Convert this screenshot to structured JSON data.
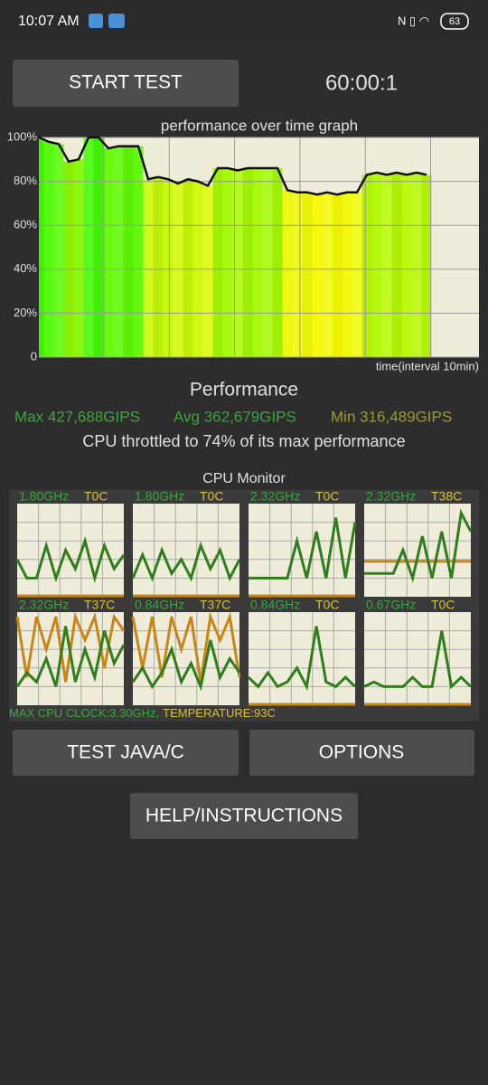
{
  "status_bar": {
    "time": "10:07 AM",
    "battery": "63"
  },
  "header": {
    "start_button": "START TEST",
    "timer": "60:00:1"
  },
  "performance_graph": {
    "title": "performance over time graph",
    "x_label": "time(interval 10min)",
    "ylim": [
      0,
      100
    ],
    "yticks": [
      {
        "value": 0,
        "label": "0"
      },
      {
        "value": 20,
        "label": "20%"
      },
      {
        "value": 40,
        "label": "40%"
      },
      {
        "value": 60,
        "label": "60%"
      },
      {
        "value": 80,
        "label": "80%"
      },
      {
        "value": 100,
        "label": "100%"
      }
    ],
    "values": [
      100,
      98,
      97,
      89,
      90,
      100,
      100,
      95,
      96,
      96,
      96,
      81,
      82,
      81,
      79,
      81,
      80,
      78,
      86,
      86,
      85,
      86,
      86,
      86,
      86,
      76,
      75,
      75,
      74,
      75,
      74,
      75,
      75,
      83,
      84,
      83,
      84,
      83,
      84,
      83
    ]
  },
  "performance": {
    "heading": "Performance",
    "max": "Max 427,688GIPS",
    "avg": "Avg 362,679GIPS",
    "min": "Min 316,489GIPS",
    "throttle": "CPU throttled to 74% of its max performance"
  },
  "cpu_monitor": {
    "title": "CPU Monitor",
    "cores": [
      {
        "freq": "1.80GHz",
        "temp": "T0C",
        "freq_line": [
          40,
          20,
          20,
          55,
          20,
          50,
          30,
          60,
          20,
          55,
          30,
          45
        ],
        "temp_line": [
          1,
          1,
          1,
          1,
          1,
          1,
          1,
          1,
          1,
          1,
          1,
          1
        ]
      },
      {
        "freq": "1.80GHz",
        "temp": "T0C",
        "freq_line": [
          20,
          45,
          20,
          50,
          25,
          40,
          20,
          55,
          30,
          50,
          20,
          40
        ],
        "temp_line": [
          1,
          1,
          1,
          1,
          1,
          1,
          1,
          1,
          1,
          1,
          1,
          1
        ]
      },
      {
        "freq": "2.32GHz",
        "temp": "T0C",
        "freq_line": [
          20,
          20,
          20,
          20,
          20,
          60,
          20,
          70,
          20,
          85,
          20,
          80
        ],
        "temp_line": [
          1,
          1,
          1,
          1,
          1,
          1,
          1,
          1,
          1,
          1,
          1,
          1
        ]
      },
      {
        "freq": "2.32GHz",
        "temp": "T38C",
        "freq_line": [
          25,
          25,
          25,
          25,
          50,
          20,
          65,
          20,
          70,
          20,
          90,
          70
        ],
        "temp_line": [
          38,
          38,
          38,
          38,
          38,
          38,
          38,
          38,
          38,
          38,
          38,
          38
        ]
      },
      {
        "freq": "2.32GHz",
        "temp": "T37C",
        "freq_line": [
          20,
          35,
          25,
          50,
          20,
          85,
          25,
          60,
          30,
          80,
          45,
          65
        ],
        "temp_line": [
          95,
          30,
          95,
          60,
          95,
          25,
          95,
          70,
          95,
          40,
          95,
          80
        ]
      },
      {
        "freq": "0.84GHz",
        "temp": "T37C",
        "freq_line": [
          25,
          40,
          20,
          35,
          60,
          25,
          45,
          20,
          70,
          30,
          50,
          35
        ],
        "temp_line": [
          95,
          40,
          95,
          30,
          95,
          60,
          95,
          25,
          95,
          70,
          95,
          30
        ]
      },
      {
        "freq": "0.84GHz",
        "temp": "T0C",
        "freq_line": [
          30,
          20,
          35,
          20,
          25,
          40,
          20,
          85,
          25,
          20,
          30,
          20
        ],
        "temp_line": [
          1,
          1,
          1,
          1,
          1,
          1,
          1,
          1,
          1,
          1,
          1,
          1
        ]
      },
      {
        "freq": "0.67GHz",
        "temp": "T0C",
        "freq_line": [
          20,
          25,
          20,
          20,
          20,
          30,
          20,
          20,
          80,
          20,
          30,
          20
        ],
        "temp_line": [
          1,
          1,
          1,
          1,
          1,
          1,
          1,
          1,
          1,
          1,
          1,
          1
        ]
      }
    ],
    "max_clock": "MAX CPU CLOCK:3.30GHz,",
    "temperature": "TEMPERATURE:93C"
  },
  "buttons": {
    "test_java": "TEST JAVA/C",
    "options": "OPTIONS",
    "help": "HELP/INSTRUCTIONS"
  }
}
